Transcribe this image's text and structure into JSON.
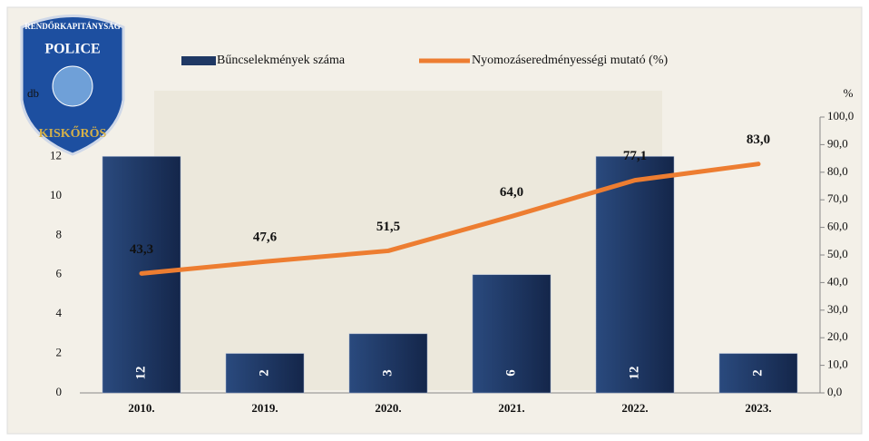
{
  "logo": {
    "top": "RENDŐRKAPITÁNYSÁG",
    "middle": "POLICE",
    "bottom": "KISKŐRÖS"
  },
  "chart_data": {
    "type": "bar-line",
    "ylabel": "db",
    "y2label": "%",
    "categories": [
      "2010.",
      "2019.",
      "2020.",
      "2021.",
      "2022.",
      "2023."
    ],
    "series": [
      {
        "name": "Bűncselekmények száma",
        "type": "bar",
        "color": "#1f3864",
        "values": [
          12,
          2,
          3,
          6,
          12,
          2
        ]
      },
      {
        "name": "Nyomozáseredményességi mutató (%)",
        "type": "line",
        "axis": "y2",
        "color": "#ed7d31",
        "values": [
          43.3,
          47.6,
          51.5,
          64.0,
          77.1,
          83.0
        ],
        "value_labels": [
          "43,3",
          "47,6",
          "51,5",
          "64,0",
          "77,1",
          "83,0"
        ]
      }
    ],
    "ylim": [
      0,
      14
    ],
    "yticks": [
      0,
      2,
      4,
      6,
      8,
      10,
      12
    ],
    "y2lim": [
      0,
      100
    ],
    "y2ticks": [
      {
        "value": 0,
        "label": "0,0"
      },
      {
        "value": 10,
        "label": "10,0"
      },
      {
        "value": 20,
        "label": "20,0"
      },
      {
        "value": 30,
        "label": "30,0"
      },
      {
        "value": 40,
        "label": "40,0"
      },
      {
        "value": 50,
        "label": "50,0"
      },
      {
        "value": 60,
        "label": "60,0"
      },
      {
        "value": 70,
        "label": "70,0"
      },
      {
        "value": 80,
        "label": "80,0"
      },
      {
        "value": 90,
        "label": "90,0"
      },
      {
        "value": 100,
        "label": "100,0"
      }
    ]
  }
}
